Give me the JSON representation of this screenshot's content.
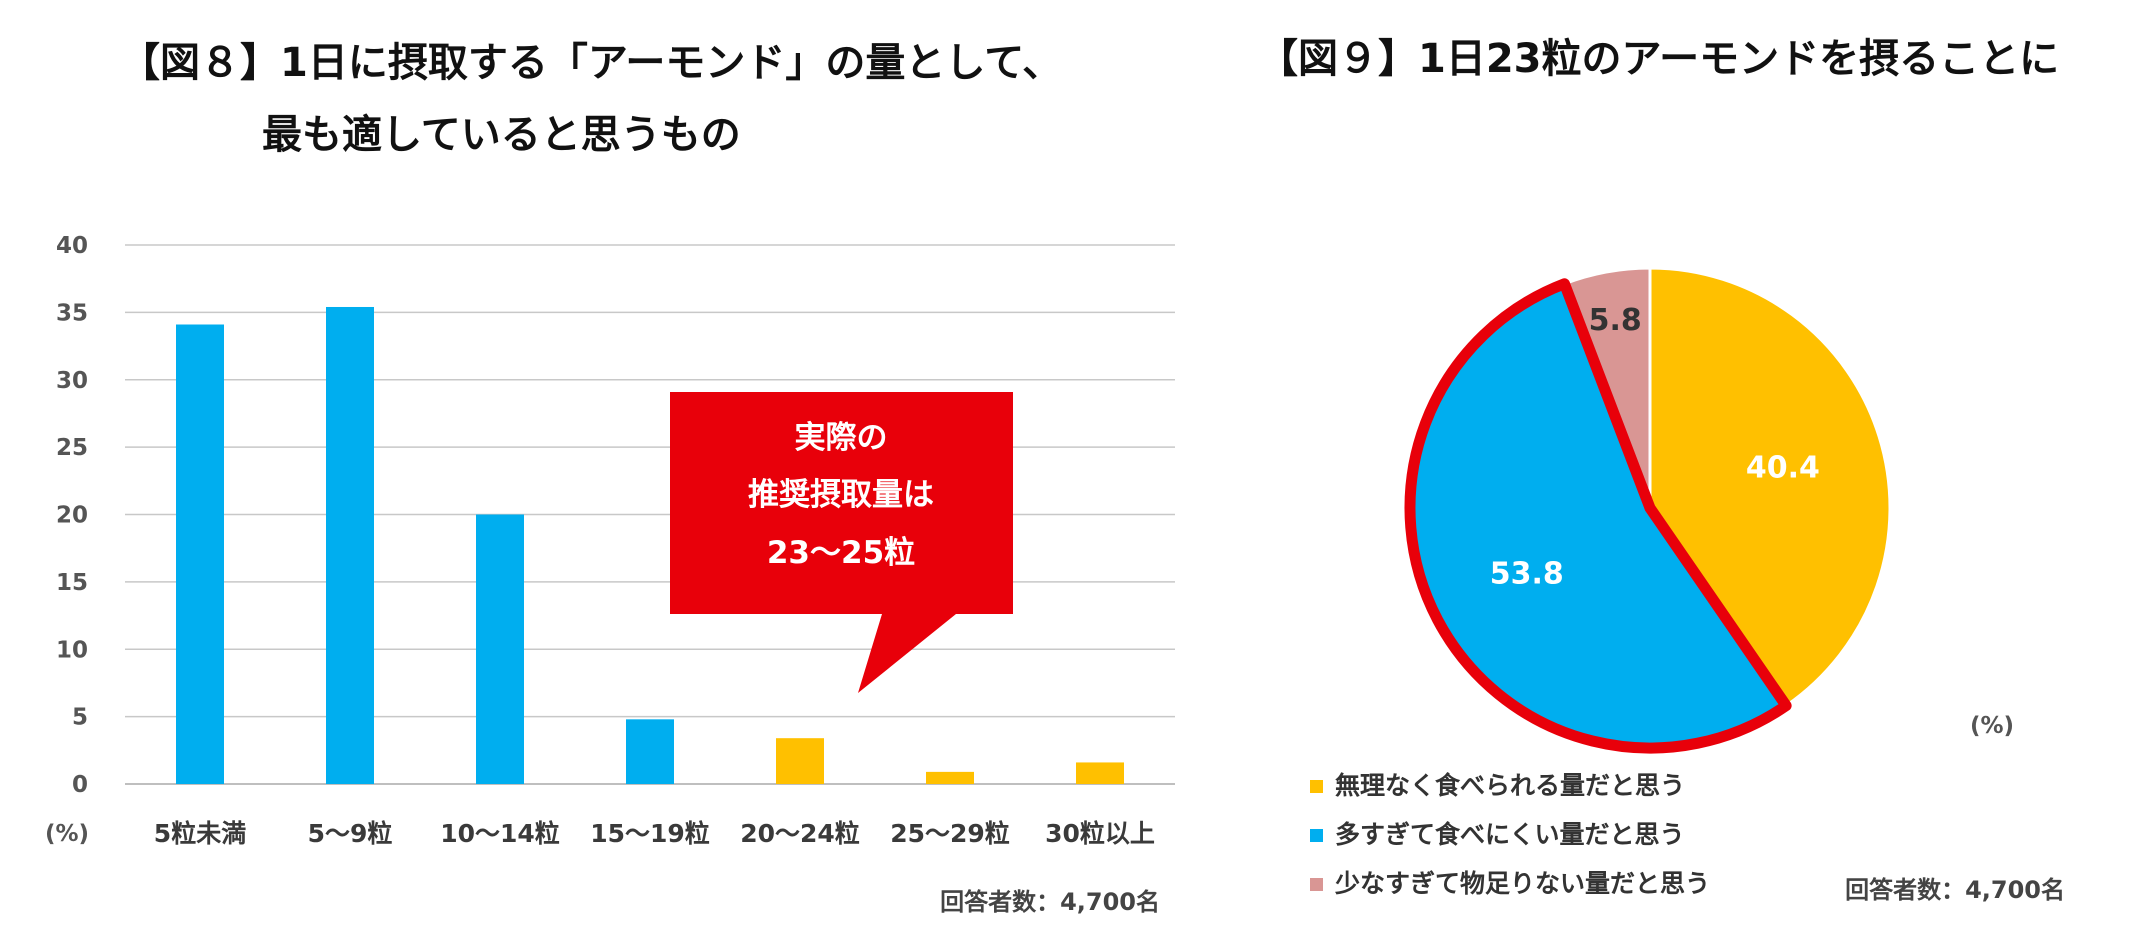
{
  "fig8": {
    "title_line1": "【図８】1日に摂取する「アーモンド」の量として、",
    "title_line2": "最も適していると思うもの",
    "percent_label": "(%)",
    "respondents": "回答者数：4,700名",
    "callout": {
      "line1": "実際の",
      "line2": "推奨摂取量は",
      "line3": "23～25粒"
    }
  },
  "fig9": {
    "title": "【図９】1日23粒のアーモンドを摂ることに",
    "percent_label": "(%)",
    "respondents": "回答者数：4,700名"
  },
  "colors": {
    "blue": "#00AEEF",
    "yellow": "#FFC000",
    "pink": "#D99694",
    "red": "#E8000A",
    "grid": "#c8c8c8"
  },
  "chart_data": [
    {
      "type": "bar",
      "title": "【図８】1日に摂取する「アーモンド」の量として、最も適していると思うもの",
      "xlabel": "",
      "ylabel": "(%)",
      "ylim": [
        0,
        40
      ],
      "yticks": [
        0,
        5,
        10,
        15,
        20,
        25,
        30,
        35,
        40
      ],
      "categories": [
        "5粒未満",
        "5～9粒",
        "10～14粒",
        "15～19粒",
        "20～24粒",
        "25～29粒",
        "30粒以上"
      ],
      "values": [
        34.1,
        35.4,
        20.0,
        4.8,
        3.4,
        0.9,
        1.6
      ],
      "bar_colors": [
        "#00AEEF",
        "#00AEEF",
        "#00AEEF",
        "#00AEEF",
        "#FFC000",
        "#FFC000",
        "#FFC000"
      ],
      "grid": true
    },
    {
      "type": "pie",
      "title": "【図９】1日23粒のアーモンドを摂ることに",
      "slices": [
        {
          "label": "無理なく食べられる量だと思う",
          "value": 40.4,
          "color": "#FFC000",
          "text_color": "#ffffff"
        },
        {
          "label": "多すぎて食べにくい量だと思う",
          "value": 53.8,
          "color": "#00AEEF",
          "text_color": "#ffffff",
          "highlighted": true
        },
        {
          "label": "少なすぎて物足りない量だと思う",
          "value": 5.8,
          "color": "#D99694",
          "text_color": "#333333"
        }
      ],
      "legend_position": "bottom-left"
    }
  ]
}
